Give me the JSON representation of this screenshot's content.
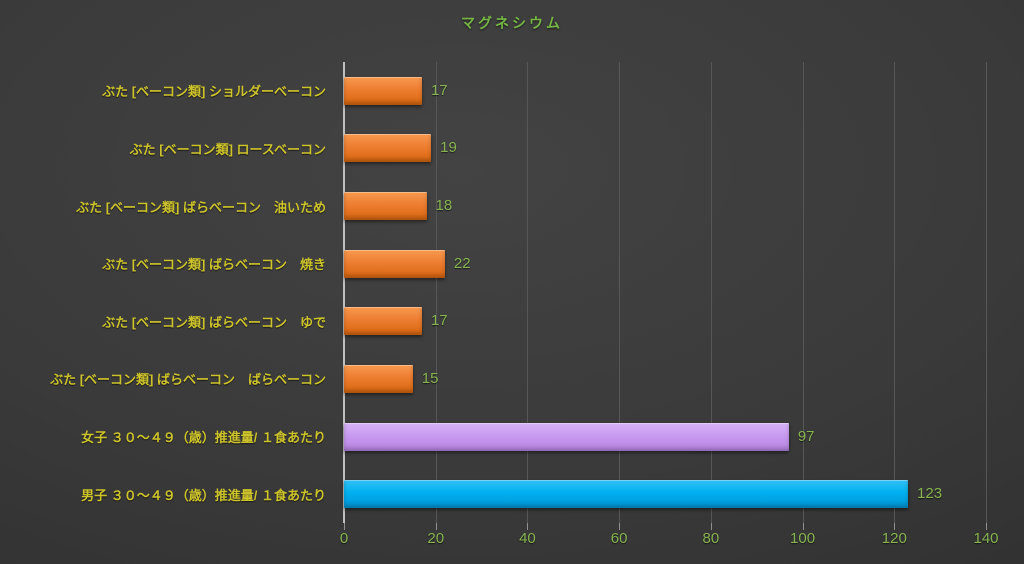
{
  "chart_data": {
    "type": "bar",
    "orientation": "horizontal",
    "title": "マグネシウム",
    "categories": [
      "ぶた [ベーコン類] ショルダーベーコン",
      "ぶた [ベーコン類] ロースベーコン",
      "ぶた [ベーコン類] ばらベーコン　油いため",
      "ぶた [ベーコン類] ばらベーコン　焼き",
      "ぶた [ベーコン類] ばらベーコン　ゆで",
      "ぶた [ベーコン類] ばらベーコン　ばらベーコン",
      "女子 ３０～４９（歳）推進量/ １食あたり",
      "男子 ３０～４９（歳）推進量/ １食あたり"
    ],
    "values": [
      17,
      19,
      18,
      22,
      17,
      15,
      97,
      123
    ],
    "value_labels": [
      "17",
      "19",
      "18",
      "22",
      "17",
      "15",
      "97",
      "123"
    ],
    "series_colors": [
      "orange",
      "orange",
      "orange",
      "orange",
      "orange",
      "orange",
      "purple",
      "blue"
    ],
    "xlim": [
      0,
      140
    ],
    "x_ticks": [
      0,
      20,
      40,
      60,
      80,
      100,
      120,
      140
    ],
    "xlabel": "",
    "ylabel": "",
    "grid": true,
    "legend": false
  },
  "colors": {
    "title": "#76b843",
    "category_label": "#cdc32b",
    "value_label": "#87b450",
    "axis_tick_label": "#87b450",
    "gridline": "#575757",
    "axis_line": "#bfbfbf",
    "tick_mark": "#8f8f8f",
    "bar_orange_light": "#f79a4f",
    "bar_orange": "#ed7d31",
    "bar_orange_dark": "#d9670f",
    "bar_purple_light": "#d7b3f7",
    "bar_purple": "#c89af0",
    "bar_purple_dark": "#b784e3",
    "bar_blue_light": "#33c0f4",
    "bar_blue": "#00b0f0",
    "bar_blue_dark": "#0095d6"
  }
}
